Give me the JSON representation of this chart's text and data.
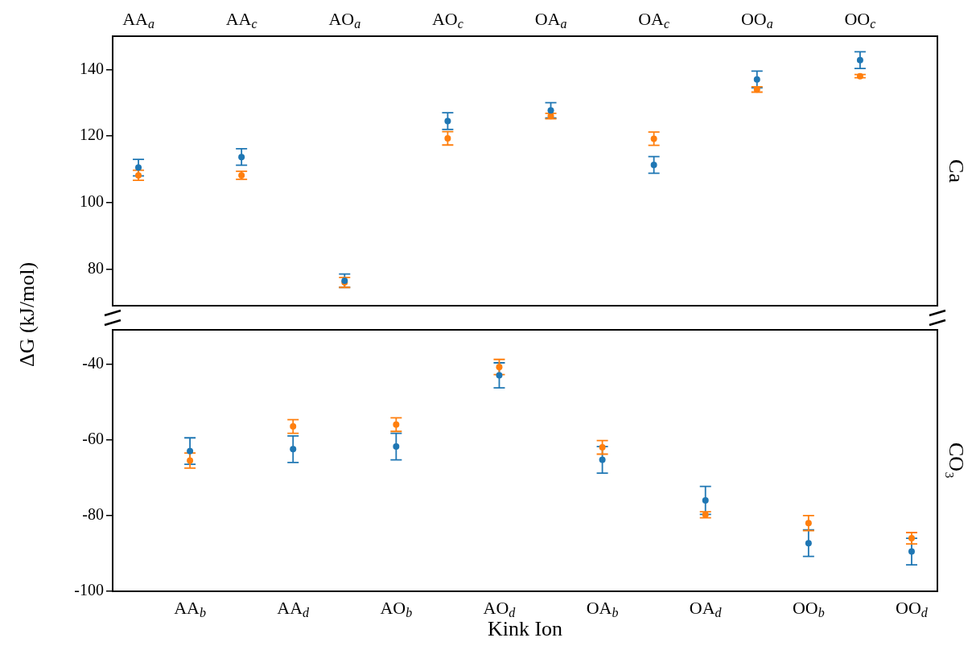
{
  "chart_data": [
    {
      "type": "scatter",
      "ylabel": "ΔG (kJ/mol)",
      "y2label": "Ca",
      "marker": "circle",
      "grid": false,
      "categories": [
        "AA$_{a}$",
        null,
        "AA$_{c}$",
        null,
        "AO$_{a}$",
        null,
        "AO$_{c}$",
        null,
        "OA$_{a}$",
        null,
        "OA$_{c}$",
        null,
        "OO$_{a}$",
        null,
        "OO$_{c}$",
        null
      ],
      "ylim": [
        69,
        150
      ],
      "yticks": [
        80,
        100,
        120,
        140
      ],
      "series": [
        {
          "color": "#1f77b4",
          "values": [
            110.5,
            null,
            113.7,
            null,
            76.5,
            null,
            124.5,
            null,
            127.7,
            null,
            111.3,
            null,
            137,
            null,
            142.8,
            null
          ],
          "errors": [
            2.5,
            null,
            2.5,
            null,
            2,
            null,
            2.5,
            null,
            2.3,
            null,
            2.5,
            null,
            2.5,
            null,
            2.5,
            null
          ]
        },
        {
          "color": "#ff7f0e",
          "values": [
            108.2,
            null,
            108.2,
            null,
            76,
            null,
            119.3,
            null,
            126,
            null,
            119.2,
            null,
            134,
            null,
            138,
            null
          ],
          "errors": [
            1.5,
            null,
            1.2,
            null,
            1.5,
            null,
            2,
            null,
            0.8,
            null,
            2,
            null,
            0.8,
            null,
            0.5,
            null
          ]
        }
      ]
    },
    {
      "type": "scatter",
      "xlabel": "Kink Ion",
      "y2label": "CO₃",
      "marker": "circle",
      "grid": false,
      "categories": [
        null,
        "AA$_{b}$",
        null,
        "AA$_{d}$",
        null,
        "AO$_{b}$",
        null,
        "AO$_{d}$",
        null,
        "OA$_{b}$",
        null,
        "OA$_{d}$",
        null,
        "OO$_{b}$",
        null,
        "OO$_{d}$"
      ],
      "ylim": [
        -100,
        -31
      ],
      "yticks": [
        -100,
        -80,
        -60,
        -40
      ],
      "series": [
        {
          "color": "#1f77b4",
          "values": [
            null,
            -63,
            null,
            -62.5,
            null,
            -61.8,
            null,
            -43,
            null,
            -65.3,
            null,
            -76,
            null,
            -87.3,
            null,
            -89.5
          ],
          "errors": [
            null,
            3.5,
            null,
            3.5,
            null,
            3.5,
            null,
            3.3,
            null,
            3.5,
            null,
            3.7,
            null,
            3.5,
            null,
            3.5
          ]
        },
        {
          "color": "#ff7f0e",
          "values": [
            null,
            -65.5,
            null,
            -56.5,
            null,
            -56,
            null,
            -40.8,
            null,
            -62,
            null,
            -79.8,
            null,
            -82,
            null,
            -86
          ],
          "errors": [
            null,
            2,
            null,
            1.8,
            null,
            1.8,
            null,
            2,
            null,
            1.8,
            null,
            0.8,
            null,
            2,
            null,
            1.5
          ]
        }
      ]
    }
  ]
}
